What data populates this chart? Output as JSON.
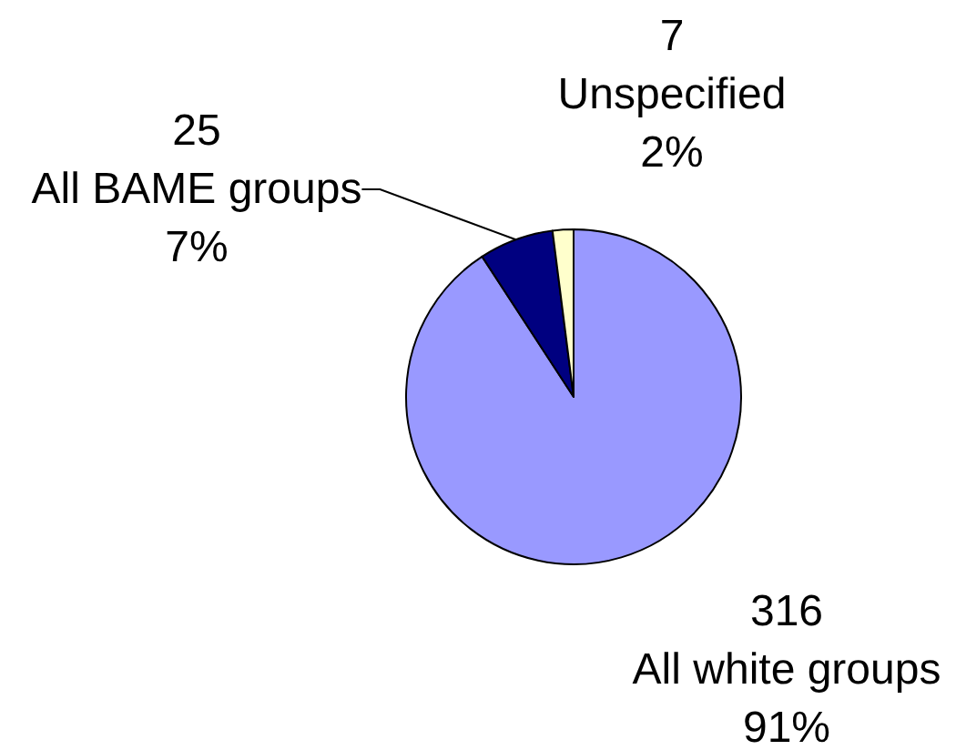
{
  "chart_data": {
    "type": "pie",
    "categories": [
      "All white groups",
      "All BAME groups",
      "Unspecified"
    ],
    "values": [
      316,
      25,
      7
    ],
    "colors": [
      "#9999ff",
      "#000080",
      "#ffffcc"
    ],
    "data_labels": true,
    "annotations": [
      "91%",
      "7%",
      "2%"
    ]
  }
}
